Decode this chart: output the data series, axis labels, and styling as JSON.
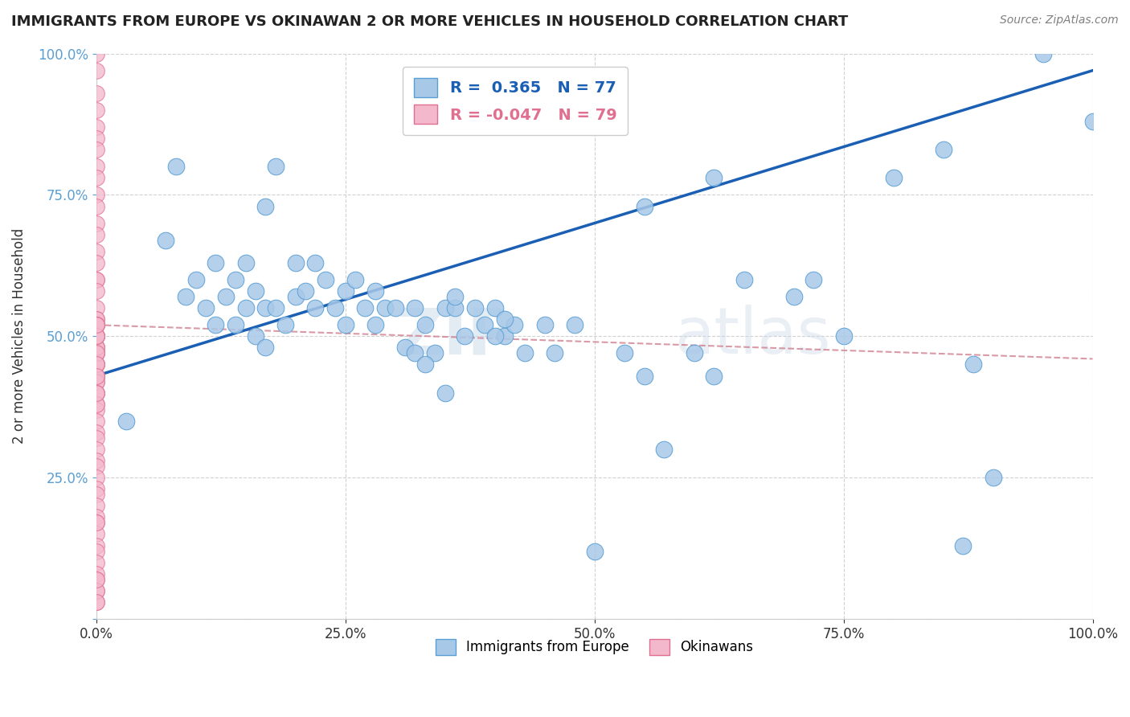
{
  "title": "IMMIGRANTS FROM EUROPE VS OKINAWAN 2 OR MORE VEHICLES IN HOUSEHOLD CORRELATION CHART",
  "source": "Source: ZipAtlas.com",
  "ylabel": "2 or more Vehicles in Household",
  "xlim": [
    0.0,
    1.0
  ],
  "ylim": [
    0.0,
    1.0
  ],
  "xticks": [
    0.0,
    0.25,
    0.5,
    0.75,
    1.0
  ],
  "xticklabels": [
    "0.0%",
    "25.0%",
    "50.0%",
    "75.0%",
    "100.0%"
  ],
  "yticks": [
    0.0,
    0.25,
    0.5,
    0.75,
    1.0
  ],
  "yticklabels": [
    "",
    "25.0%",
    "50.0%",
    "75.0%",
    "100.0%"
  ],
  "blue_R": 0.365,
  "blue_N": 77,
  "pink_R": -0.047,
  "pink_N": 79,
  "blue_color": "#a8c8e8",
  "blue_edge": "#5a9fd4",
  "pink_color": "#f4b8cc",
  "pink_edge": "#e07090",
  "blue_line_color": "#1a5fb4",
  "pink_line_color": "#d08090",
  "watermark_zip": "ZIP",
  "watermark_atlas": "atlas",
  "legend_blue_label": "Immigrants from Europe",
  "legend_pink_label": "Okinawans",
  "blue_line_x0": 0.0,
  "blue_line_y0": 0.43,
  "blue_line_x1": 1.0,
  "blue_line_y1": 0.97,
  "pink_line_x0": 0.0,
  "pink_line_y0": 0.52,
  "pink_line_x1": 1.0,
  "pink_line_y1": 0.46,
  "blue_x": [
    0.03,
    0.07,
    0.08,
    0.09,
    0.1,
    0.11,
    0.12,
    0.12,
    0.13,
    0.14,
    0.14,
    0.15,
    0.15,
    0.16,
    0.16,
    0.17,
    0.17,
    0.18,
    0.19,
    0.2,
    0.2,
    0.21,
    0.22,
    0.22,
    0.23,
    0.24,
    0.25,
    0.25,
    0.26,
    0.27,
    0.28,
    0.28,
    0.29,
    0.3,
    0.31,
    0.32,
    0.33,
    0.34,
    0.35,
    0.36,
    0.37,
    0.38,
    0.39,
    0.4,
    0.41,
    0.42,
    0.43,
    0.45,
    0.46,
    0.48,
    0.5,
    0.53,
    0.55,
    0.57,
    0.6,
    0.62,
    0.65,
    0.7,
    0.72,
    0.75,
    0.8,
    0.85,
    0.87,
    0.9,
    0.95,
    1.0,
    0.35,
    0.36,
    0.55,
    0.62,
    0.88,
    0.32,
    0.33,
    0.4,
    0.41,
    0.17,
    0.18
  ],
  "blue_y": [
    0.35,
    0.67,
    0.8,
    0.57,
    0.6,
    0.55,
    0.52,
    0.63,
    0.57,
    0.52,
    0.6,
    0.55,
    0.63,
    0.5,
    0.58,
    0.55,
    0.48,
    0.55,
    0.52,
    0.57,
    0.63,
    0.58,
    0.55,
    0.63,
    0.6,
    0.55,
    0.52,
    0.58,
    0.6,
    0.55,
    0.52,
    0.58,
    0.55,
    0.55,
    0.48,
    0.55,
    0.52,
    0.47,
    0.55,
    0.55,
    0.5,
    0.55,
    0.52,
    0.55,
    0.5,
    0.52,
    0.47,
    0.52,
    0.47,
    0.52,
    0.12,
    0.47,
    0.43,
    0.3,
    0.47,
    0.43,
    0.6,
    0.57,
    0.6,
    0.5,
    0.78,
    0.83,
    0.13,
    0.25,
    1.0,
    0.88,
    0.4,
    0.57,
    0.73,
    0.78,
    0.45,
    0.47,
    0.45,
    0.5,
    0.53,
    0.73,
    0.8
  ],
  "pink_x": [
    0.0,
    0.0,
    0.0,
    0.0,
    0.0,
    0.0,
    0.0,
    0.0,
    0.0,
    0.0,
    0.0,
    0.0,
    0.0,
    0.0,
    0.0,
    0.0,
    0.0,
    0.0,
    0.0,
    0.0,
    0.0,
    0.0,
    0.0,
    0.0,
    0.0,
    0.0,
    0.0,
    0.0,
    0.0,
    0.0,
    0.0,
    0.0,
    0.0,
    0.0,
    0.0,
    0.0,
    0.0,
    0.0,
    0.0,
    0.0,
    0.0,
    0.0,
    0.0,
    0.0,
    0.0,
    0.0,
    0.0,
    0.0,
    0.0,
    0.0,
    0.0,
    0.0,
    0.0,
    0.0,
    0.0,
    0.0,
    0.0,
    0.0,
    0.0,
    0.0,
    0.0,
    0.0,
    0.0,
    0.0,
    0.0,
    0.0,
    0.0,
    0.0,
    0.0,
    0.0,
    0.0,
    0.0,
    0.0,
    0.0,
    0.0,
    0.0,
    0.0,
    0.0,
    0.0
  ],
  "pink_y": [
    1.0,
    0.97,
    0.93,
    0.9,
    0.87,
    0.85,
    0.83,
    0.8,
    0.78,
    0.75,
    0.73,
    0.7,
    0.68,
    0.65,
    0.63,
    0.6,
    0.6,
    0.58,
    0.55,
    0.53,
    0.53,
    0.52,
    0.52,
    0.5,
    0.5,
    0.5,
    0.48,
    0.47,
    0.47,
    0.45,
    0.45,
    0.43,
    0.43,
    0.42,
    0.4,
    0.38,
    0.37,
    0.35,
    0.33,
    0.32,
    0.3,
    0.28,
    0.27,
    0.25,
    0.23,
    0.22,
    0.2,
    0.18,
    0.17,
    0.15,
    0.13,
    0.12,
    0.1,
    0.08,
    0.07,
    0.05,
    0.03,
    0.52,
    0.5,
    0.48,
    0.47,
    0.45,
    0.43,
    0.42,
    0.4,
    0.38,
    0.48,
    0.5,
    0.52,
    0.47,
    0.45,
    0.43,
    0.4,
    0.17,
    0.05,
    0.03,
    0.07,
    0.5,
    0.52
  ]
}
